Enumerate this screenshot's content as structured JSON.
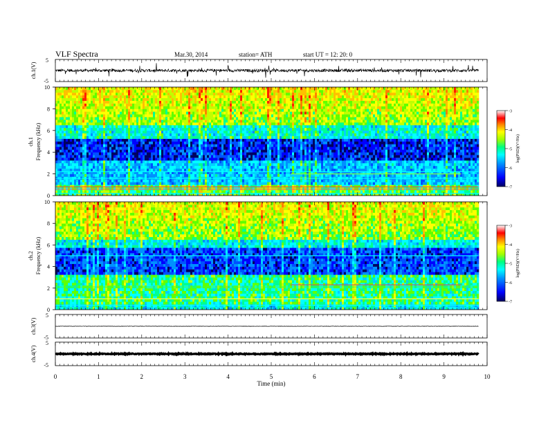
{
  "header": {
    "title": "VLF  Spectra",
    "date": "Mar.30, 2014",
    "station": "station= ATH",
    "start": "start  UT  =    12: 20: 0"
  },
  "colors": {
    "spectrogram_scale": [
      "#000080",
      "#0000ff",
      "#0080ff",
      "#00ffff",
      "#00ff80",
      "#80ff00",
      "#ffff00",
      "#ff8000",
      "#ff0000",
      "#ffffff"
    ],
    "trace": "#000000"
  },
  "chart_data": [
    {
      "type": "line",
      "id": "ch1-waveform",
      "ylabel": "ch.1(V)",
      "yticks": [
        "5",
        "-5"
      ],
      "ylim": [
        -5,
        5
      ],
      "xlim": [
        0,
        10
      ],
      "data_end_min": 9.8,
      "baseline": 0.0,
      "noise_amplitude": 1.3
    },
    {
      "type": "heatmap",
      "id": "ch1-spectrogram",
      "ylabel_channel": "ch.1",
      "ylabel": "Frequency  (kHz)",
      "yticks": [
        "0",
        "2",
        "4",
        "6",
        "8",
        "10"
      ],
      "ylim": [
        0,
        10
      ],
      "xlim": [
        0,
        10
      ],
      "data_end_min": 9.8,
      "colorbar": {
        "label": "log(PSD)(V²/Hz)",
        "ticks": [
          "-3",
          "-4",
          "-5",
          "-6",
          "-7"
        ],
        "range": [
          -7,
          -3
        ]
      }
    },
    {
      "type": "heatmap",
      "id": "ch2-spectrogram",
      "ylabel_channel": "ch.2",
      "ylabel": "Frequency  (kHz)",
      "yticks": [
        "0",
        "2",
        "4",
        "6",
        "8",
        "10"
      ],
      "ylim": [
        0,
        10
      ],
      "xlim": [
        0,
        10
      ],
      "data_end_min": 9.8,
      "colorbar": {
        "label": "log(PSD)(V²/Hz)",
        "ticks": [
          "-3",
          "-4",
          "-5",
          "-6",
          "-7"
        ],
        "range": [
          -7,
          -3
        ]
      }
    },
    {
      "type": "line",
      "id": "ch3-waveform",
      "ylabel": "ch.3(V)",
      "yticks": [
        "5",
        "-5"
      ],
      "ylim": [
        -5,
        5
      ],
      "xlim": [
        0,
        10
      ],
      "data_end_min": 9.8,
      "baseline": 0.0,
      "noise_amplitude": 0.15
    },
    {
      "type": "line",
      "id": "ch4-waveform",
      "ylabel": "ch.4(V)",
      "yticks": [
        "5",
        "-5"
      ],
      "ylim": [
        -5,
        5
      ],
      "xlim": [
        0,
        10
      ],
      "data_end_min": 9.8,
      "baseline": 0.0,
      "noise_amplitude": 0.35
    }
  ],
  "xaxis": {
    "label": "Time  (min)",
    "ticks": [
      "0",
      "1",
      "2",
      "3",
      "4",
      "5",
      "6",
      "7",
      "8",
      "9",
      "10"
    ],
    "range": [
      0,
      10
    ]
  }
}
